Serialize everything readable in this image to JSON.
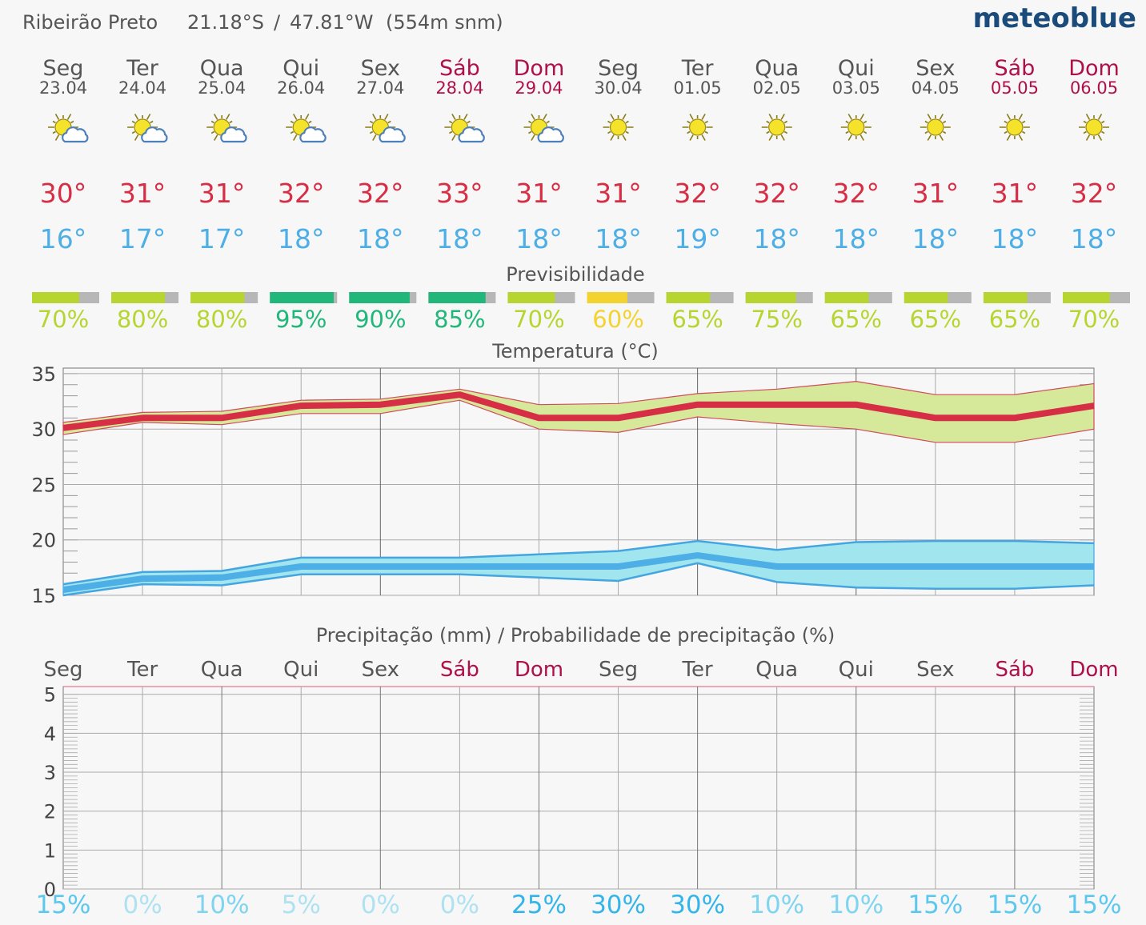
{
  "header": {
    "location": "Ribeirão Preto",
    "lat": "21.18°S",
    "separator": "/",
    "lon": "47.81°W",
    "elevation": "(554m snm)",
    "brand": "meteoblue"
  },
  "colors": {
    "weekday": "#555555",
    "weekend": "#b0104a",
    "max_temp": "#d62e45",
    "min_temp": "#4eaee6",
    "max_band": "#d6e99a",
    "min_band": "#a1e6ee",
    "brand": "#1b4b7a",
    "pred_high": "#22b77a",
    "pred_mid": "#b6d531",
    "pred_low": "#f3d330",
    "pred_rest": "#b7b7b7"
  },
  "days": [
    {
      "day": "Seg",
      "date": "23.04",
      "weekend": false,
      "icon": "sun-cloud-icon",
      "tmax": "30°",
      "tmin": "16°",
      "pred": 70,
      "pred_label": "70%",
      "precip_prob": "15%"
    },
    {
      "day": "Ter",
      "date": "24.04",
      "weekend": false,
      "icon": "sun-cloud-icon",
      "tmax": "31°",
      "tmin": "17°",
      "pred": 80,
      "pred_label": "80%",
      "precip_prob": "0%"
    },
    {
      "day": "Qua",
      "date": "25.04",
      "weekend": false,
      "icon": "sun-cloud-icon",
      "tmax": "31°",
      "tmin": "17°",
      "pred": 80,
      "pred_label": "80%",
      "precip_prob": "10%"
    },
    {
      "day": "Qui",
      "date": "26.04",
      "weekend": false,
      "icon": "sun-cloud-icon",
      "tmax": "32°",
      "tmin": "18°",
      "pred": 95,
      "pred_label": "95%",
      "precip_prob": "5%"
    },
    {
      "day": "Sex",
      "date": "27.04",
      "weekend": false,
      "icon": "sun-cloud-icon",
      "tmax": "32°",
      "tmin": "18°",
      "pred": 90,
      "pred_label": "90%",
      "precip_prob": "0%"
    },
    {
      "day": "Sáb",
      "date": "28.04",
      "weekend": true,
      "icon": "sun-cloud-icon",
      "tmax": "33°",
      "tmin": "18°",
      "pred": 85,
      "pred_label": "85%",
      "precip_prob": "0%"
    },
    {
      "day": "Dom",
      "date": "29.04",
      "weekend": true,
      "icon": "sun-cloud-icon",
      "tmax": "31°",
      "tmin": "18°",
      "pred": 70,
      "pred_label": "70%",
      "precip_prob": "25%"
    },
    {
      "day": "Seg",
      "date": "30.04",
      "weekend": false,
      "icon": "sun-icon",
      "tmax": "31°",
      "tmin": "18°",
      "pred": 60,
      "pred_label": "60%",
      "precip_prob": "30%"
    },
    {
      "day": "Ter",
      "date": "01.05",
      "weekend": false,
      "icon": "sun-icon",
      "tmax": "32°",
      "tmin": "19°",
      "pred": 65,
      "pred_label": "65%",
      "precip_prob": "30%"
    },
    {
      "day": "Qua",
      "date": "02.05",
      "weekend": false,
      "icon": "sun-icon",
      "tmax": "32°",
      "tmin": "18°",
      "pred": 75,
      "pred_label": "75%",
      "precip_prob": "10%"
    },
    {
      "day": "Qui",
      "date": "03.05",
      "weekend": false,
      "icon": "sun-icon",
      "tmax": "32°",
      "tmin": "18°",
      "pred": 65,
      "pred_label": "65%",
      "precip_prob": "10%"
    },
    {
      "day": "Sex",
      "date": "04.05",
      "weekend": false,
      "icon": "sun-icon",
      "tmax": "31°",
      "tmin": "18°",
      "pred": 65,
      "pred_label": "65%",
      "precip_prob": "15%"
    },
    {
      "day": "Sáb",
      "date": "05.05",
      "weekend": true,
      "icon": "sun-icon",
      "tmax": "31°",
      "tmin": "18°",
      "pred": 65,
      "pred_label": "65%",
      "precip_prob": "15%"
    },
    {
      "day": "Dom",
      "date": "06.05",
      "weekend": true,
      "icon": "sun-icon",
      "tmax": "32°",
      "tmin": "18°",
      "pred": 70,
      "pred_label": "70%",
      "precip_prob": "15%"
    }
  ],
  "predictability": {
    "title": "Previsibilidade"
  },
  "chart_data": [
    {
      "type": "line",
      "title": "Temperatura (°C)",
      "ylim": [
        15,
        35.5
      ],
      "yticks": [
        "15",
        "20",
        "25",
        "30",
        "35"
      ],
      "grid": true,
      "series": [
        {
          "name": "max",
          "values": [
            30.1,
            31.0,
            31.0,
            32.1,
            32.2,
            33.1,
            31.0,
            31.0,
            32.2,
            32.2,
            32.2,
            31.0,
            31.0,
            32.1
          ]
        },
        {
          "name": "max_upper",
          "values": [
            30.6,
            31.5,
            31.6,
            32.6,
            32.7,
            33.6,
            32.2,
            32.3,
            33.2,
            33.6,
            34.3,
            33.1,
            33.1,
            34.1
          ]
        },
        {
          "name": "max_lower",
          "values": [
            29.5,
            30.6,
            30.4,
            31.4,
            31.4,
            32.6,
            30.0,
            29.7,
            31.1,
            30.5,
            30.0,
            28.8,
            28.8,
            30.0
          ]
        },
        {
          "name": "min",
          "values": [
            15.5,
            16.5,
            16.6,
            17.6,
            17.6,
            17.6,
            17.6,
            17.6,
            18.6,
            17.6,
            17.6,
            17.6,
            17.6,
            17.6
          ]
        },
        {
          "name": "min_upper",
          "values": [
            16.0,
            17.1,
            17.2,
            18.4,
            18.4,
            18.4,
            18.7,
            19.0,
            19.9,
            19.1,
            19.8,
            19.9,
            19.9,
            19.7
          ]
        },
        {
          "name": "min_lower",
          "values": [
            15.0,
            16.0,
            15.9,
            16.9,
            16.9,
            16.9,
            16.6,
            16.3,
            17.9,
            16.2,
            15.7,
            15.6,
            15.6,
            15.9
          ]
        }
      ]
    },
    {
      "type": "bar",
      "title": "Precipitação (mm) / Probabilidade de precipitação (%)",
      "ylim": [
        0,
        5.2
      ],
      "yticks": [
        "0",
        "1",
        "2",
        "3",
        "4",
        "5"
      ],
      "grid": true,
      "values": [
        0,
        0,
        0,
        0,
        0,
        0,
        0,
        0,
        0,
        0,
        0,
        0,
        0,
        0
      ]
    }
  ]
}
